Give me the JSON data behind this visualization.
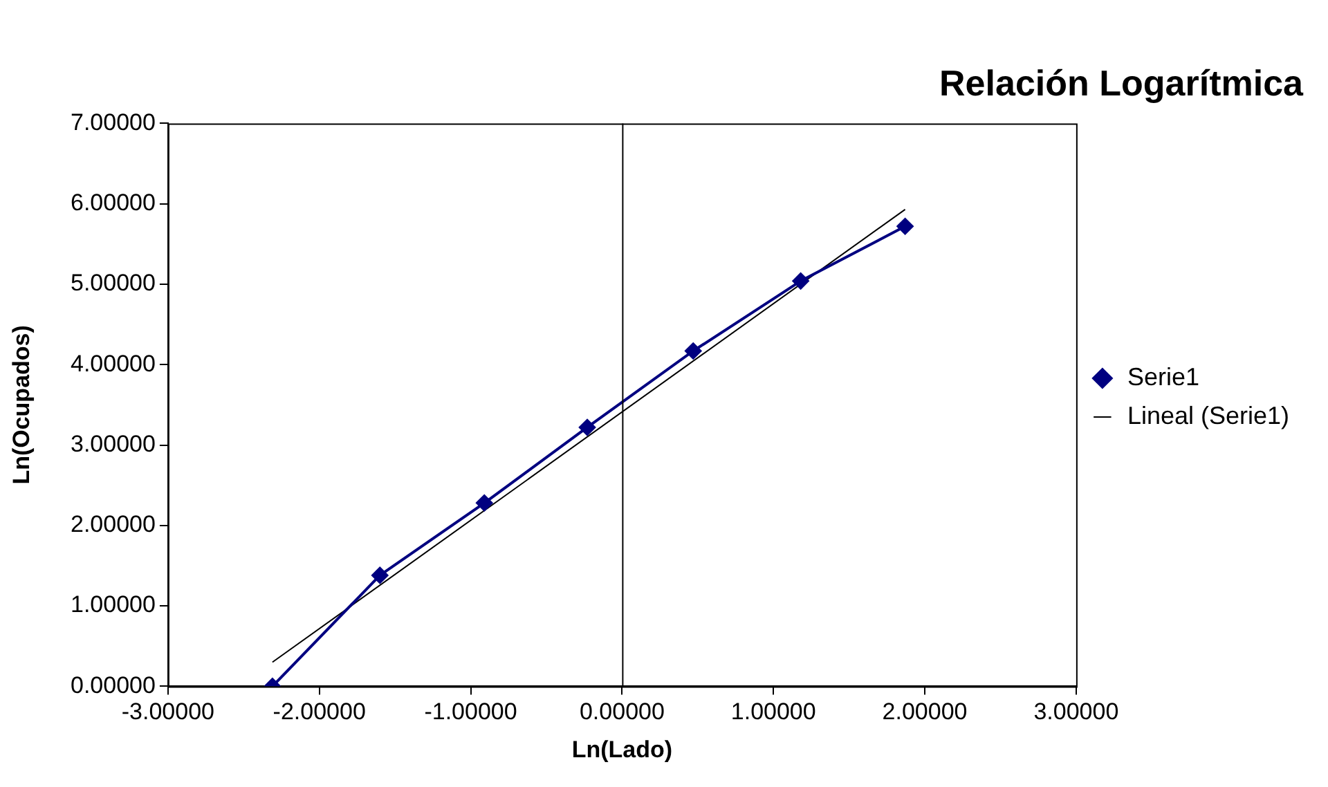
{
  "chart_data": {
    "type": "line",
    "title": "Relación Logarítmica",
    "xlabel": "Ln(Lado)",
    "ylabel": "Ln(Ocupados)",
    "xlim": [
      -3,
      3
    ],
    "ylim": [
      0,
      7
    ],
    "xticks": [
      {
        "value": -3,
        "label": "-3.00000"
      },
      {
        "value": -2,
        "label": "-2.00000"
      },
      {
        "value": -1,
        "label": "-1.00000"
      },
      {
        "value": 0,
        "label": "0.00000"
      },
      {
        "value": 1,
        "label": "1.00000"
      },
      {
        "value": 2,
        "label": "2.00000"
      },
      {
        "value": 3,
        "label": "3.00000"
      }
    ],
    "yticks": [
      {
        "value": 0,
        "label": "0.00000"
      },
      {
        "value": 1,
        "label": "1.00000"
      },
      {
        "value": 2,
        "label": "2.00000"
      },
      {
        "value": 3,
        "label": "3.00000"
      },
      {
        "value": 4,
        "label": "4.00000"
      },
      {
        "value": 5,
        "label": "5.00000"
      },
      {
        "value": 6,
        "label": "6.00000"
      },
      {
        "value": 7,
        "label": "7.00000"
      }
    ],
    "grid": false,
    "legend": "right",
    "ref_lines": [
      {
        "axis": "x",
        "value": 0,
        "color": "#000000"
      }
    ],
    "series": [
      {
        "name": "Serie1",
        "color": "#000080",
        "marker": "diamond",
        "x": [
          -2.31,
          -1.6,
          -0.91,
          -0.23,
          0.47,
          1.18,
          1.87
        ],
        "values": [
          0,
          1.38,
          2.28,
          3.22,
          4.17,
          5.04,
          5.72
        ]
      },
      {
        "name": "Lineal (Serie1)",
        "color": "#000000",
        "marker": "none",
        "x": [
          -2.31,
          1.87
        ],
        "values": [
          0.3,
          5.93
        ]
      }
    ]
  }
}
